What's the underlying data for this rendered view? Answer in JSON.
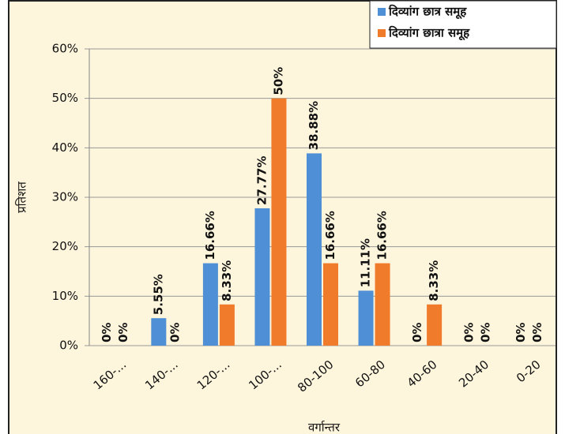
{
  "chart_data": {
    "type": "bar",
    "x_label": "वर्गान्तर",
    "y_label": "प्रतिशत",
    "categories": [
      "160-...",
      "140-...",
      "120-...",
      "100-...",
      "80-100",
      "60-80",
      "40-60",
      "20-40",
      "0-20"
    ],
    "series": [
      {
        "name": "दिव्यांग छात्र  समूह",
        "color": "#4f8fd6",
        "values": [
          0,
          5.55,
          16.66,
          27.77,
          38.88,
          11.11,
          0,
          0,
          0
        ],
        "value_labels": [
          "0%",
          "5.55%",
          "16.66%",
          "27.77%",
          "38.88%",
          "11.11%",
          "0%",
          "0%",
          "0%"
        ]
      },
      {
        "name": "दिव्यांग छात्रा  समूह",
        "color": "#f07b2a",
        "values": [
          0,
          0,
          8.33,
          50,
          16.66,
          16.66,
          8.33,
          0,
          0
        ],
        "value_labels": [
          "0%",
          "0%",
          "8.33%",
          "50%",
          "16.66%",
          "16.66%",
          "8.33%",
          "0%",
          "0%"
        ]
      }
    ],
    "ylim": [
      0,
      60
    ],
    "yticks": [
      {
        "value": 0,
        "label": "0%"
      },
      {
        "value": 10,
        "label": "10%"
      },
      {
        "value": 20,
        "label": "20%"
      },
      {
        "value": 30,
        "label": "30%"
      },
      {
        "value": 40,
        "label": "40%"
      },
      {
        "value": 50,
        "label": "50%"
      },
      {
        "value": 60,
        "label": "60%"
      }
    ],
    "grid": true,
    "legend": "top-right"
  }
}
